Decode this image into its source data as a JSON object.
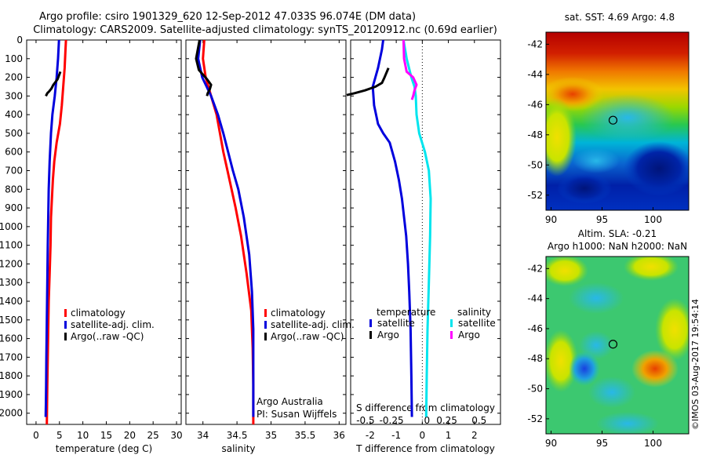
{
  "header": {
    "line1": "Argo profile: csiro 1901329_620 12-Sep-2012 47.033S 96.074E (DM data)",
    "line2": "Climatology: CARS2009. Satellite-adjusted climatology: synTS_20120912.nc (0.69d earlier)"
  },
  "side_stamp": "©IMOS 03-Aug-2017 19:54:14",
  "colors": {
    "climatology": "#ff0000",
    "satellite": "#0000dd",
    "argo": "#000000",
    "sal_satellite": "#00e5ee",
    "sal_argo": "#ff00ff",
    "zero_line": "#000000"
  },
  "chart_data": [
    {
      "id": "temperature",
      "type": "line",
      "xlabel": "temperature (deg C)",
      "ylabel": "",
      "xlim": [
        -2,
        31
      ],
      "ylim": [
        2060,
        0
      ],
      "xticks": [
        0,
        5,
        10,
        15,
        20,
        25,
        30
      ],
      "yticks": [
        0,
        100,
        200,
        300,
        400,
        500,
        600,
        700,
        800,
        900,
        1000,
        1100,
        1200,
        1300,
        1400,
        1500,
        1600,
        1700,
        1800,
        1900,
        2000
      ],
      "legend": {
        "placement": "lower-right",
        "entries": [
          "climatology",
          "satellite-adj. clim.",
          "Argo(..raw -QC)"
        ]
      },
      "series": [
        {
          "name": "climatology",
          "color_key": "climatology",
          "x": [
            6.4,
            6.3,
            6.1,
            5.8,
            5.5,
            5.1,
            4.4,
            3.9,
            3.6,
            3.4,
            3.2,
            3.1,
            2.9,
            2.7,
            2.6,
            2.5,
            2.4,
            2.35,
            2.3
          ],
          "y": [
            0,
            50,
            150,
            250,
            350,
            450,
            550,
            650,
            750,
            850,
            950,
            1100,
            1250,
            1400,
            1550,
            1700,
            1850,
            1950,
            2060
          ]
        },
        {
          "name": "satellite-adj. clim.",
          "color_key": "satellite",
          "x": [
            4.9,
            4.7,
            4.4,
            4.0,
            3.5,
            3.2,
            2.9,
            2.7,
            2.6,
            2.5,
            2.4,
            2.3,
            2.2,
            2.15,
            2.1,
            2.05
          ],
          "y": [
            0,
            100,
            200,
            300,
            400,
            500,
            650,
            800,
            950,
            1100,
            1300,
            1500,
            1700,
            1850,
            1950,
            2020
          ]
        },
        {
          "name": "Argo(..raw -QC)",
          "color_key": "argo",
          "x": [
            5.2,
            4.6,
            3.7,
            3.3,
            2.8,
            2.4,
            2.1
          ],
          "y": [
            170,
            210,
            240,
            260,
            275,
            285,
            300
          ]
        }
      ]
    },
    {
      "id": "salinity",
      "type": "line",
      "xlabel": "salinity",
      "ylabel": "",
      "xlim": [
        33.75,
        36.1
      ],
      "ylim": [
        2060,
        0
      ],
      "xticks": [
        34,
        34.5,
        35,
        35.5,
        36
      ],
      "xticklabels": [
        "34",
        "34.5",
        "35",
        "35.5",
        "36"
      ],
      "yticks": [
        0,
        100,
        200,
        300,
        400,
        500,
        600,
        700,
        800,
        900,
        1000,
        1100,
        1200,
        1300,
        1400,
        1500,
        1600,
        1700,
        1800,
        1900,
        2000
      ],
      "legend": {
        "placement": "lower-right",
        "entries": [
          "climatology",
          "satellite-adj. clim.",
          "Argo(..raw -QC)"
        ]
      },
      "annotations": [
        "Argo Australia",
        "PI: Susan Wijffels"
      ],
      "series": [
        {
          "name": "climatology",
          "color_key": "climatology",
          "x": [
            34.02,
            34.0,
            34.04,
            34.12,
            34.2,
            34.25,
            34.3,
            34.36,
            34.42,
            34.48,
            34.56,
            34.64,
            34.71,
            34.73,
            34.74,
            34.74
          ],
          "y": [
            0,
            100,
            200,
            300,
            400,
            500,
            600,
            700,
            800,
            900,
            1050,
            1250,
            1450,
            1650,
            1850,
            2060
          ]
        },
        {
          "name": "satellite-adj. clim.",
          "color_key": "satellite",
          "x": [
            33.96,
            33.93,
            33.99,
            34.12,
            34.22,
            34.3,
            34.37,
            34.44,
            34.52,
            34.6,
            34.68,
            34.72,
            34.74,
            34.74,
            34.74
          ],
          "y": [
            0,
            100,
            200,
            300,
            400,
            500,
            600,
            700,
            800,
            950,
            1150,
            1350,
            1550,
            1800,
            2020
          ]
        },
        {
          "name": "Argo(..raw -QC)",
          "color_key": "argo",
          "x": [
            33.95,
            33.9,
            33.94,
            34.06,
            34.12,
            34.1,
            34.07,
            34.06
          ],
          "y": [
            0,
            100,
            160,
            210,
            240,
            265,
            285,
            300
          ]
        }
      ]
    },
    {
      "id": "difference",
      "type": "line",
      "xlabel": "T difference from climatology",
      "xlabel_top": "S difference from climatology",
      "xlim": [
        -2.75,
        3.0
      ],
      "ylim": [
        2060,
        0
      ],
      "xticks": [
        -2,
        -1,
        0,
        1,
        2
      ],
      "xticklabels": [
        "-2",
        "-1",
        "0",
        "1",
        "2"
      ],
      "top_ticklabels": [
        "-0.5",
        "-0.25",
        "0",
        "0.25",
        "0.5"
      ],
      "yticks": [
        0,
        100,
        200,
        300,
        400,
        500,
        600,
        700,
        800,
        900,
        1000,
        1100,
        1200,
        1300,
        1400,
        1500,
        1600,
        1700,
        1800,
        1900,
        2000
      ],
      "legend": {
        "placement": "lower-center",
        "headers": [
          "temperature",
          "salinity"
        ],
        "entries": [
          "satellite",
          "Argo",
          "satellite",
          "Argo"
        ]
      },
      "series": [
        {
          "name": "temperature satellite",
          "color_key": "satellite",
          "x": [
            -1.5,
            -1.55,
            -1.7,
            -1.9,
            -1.85,
            -1.7,
            -1.5,
            -1.25,
            -1.05,
            -0.9,
            -0.78,
            -0.7,
            -0.62,
            -0.55,
            -0.5,
            -0.45,
            -0.42,
            -0.4
          ],
          "y": [
            0,
            50,
            150,
            250,
            350,
            450,
            500,
            550,
            650,
            750,
            850,
            950,
            1050,
            1200,
            1350,
            1550,
            1800,
            2020
          ]
        },
        {
          "name": "temperature Argo",
          "color_key": "argo",
          "x": [
            -1.3,
            -1.45,
            -1.55,
            -1.8,
            -2.2,
            -2.6,
            -2.9
          ],
          "y": [
            150,
            200,
            230,
            250,
            270,
            285,
            295
          ]
        },
        {
          "name": "salinity satellite",
          "color_key": "sal_satellite",
          "x": [
            -0.72,
            -0.6,
            -0.42,
            -0.3,
            -0.25,
            -0.22,
            -0.12,
            0.1,
            0.25,
            0.32,
            0.3,
            0.25,
            0.2,
            0.17,
            0.15
          ],
          "y": [
            0,
            100,
            200,
            250,
            300,
            400,
            500,
            600,
            700,
            850,
            1050,
            1300,
            1550,
            1800,
            2020
          ]
        },
        {
          "name": "salinity Argo",
          "color_key": "sal_argo",
          "x": [
            -0.72,
            -0.7,
            -0.6,
            -0.35,
            -0.22,
            -0.3,
            -0.35,
            -0.4
          ],
          "y": [
            0,
            100,
            170,
            200,
            240,
            270,
            300,
            320
          ]
        }
      ]
    },
    {
      "id": "sst_map",
      "type": "heatmap",
      "title": "sat. SST: 4.69 Argo: 4.8",
      "xlim": [
        89.5,
        103.5
      ],
      "ylim": [
        -53,
        -41.2
      ],
      "xticks": [
        90,
        95,
        100
      ],
      "yticks": [
        -42,
        -44,
        -46,
        -48,
        -50,
        -52
      ],
      "marker": {
        "lon": 96.074,
        "lat": -47.033
      }
    },
    {
      "id": "sla_map",
      "type": "heatmap",
      "title_lines": [
        "Altim. SLA: -0.21",
        "Argo h1000: NaN h2000: NaN"
      ],
      "xlim": [
        89.5,
        103.5
      ],
      "ylim": [
        -53,
        -41.2
      ],
      "xticks": [
        90,
        95,
        100
      ],
      "yticks": [
        -42,
        -44,
        -46,
        -48,
        -50,
        -52
      ],
      "marker": {
        "lon": 96.074,
        "lat": -47.033
      }
    }
  ]
}
